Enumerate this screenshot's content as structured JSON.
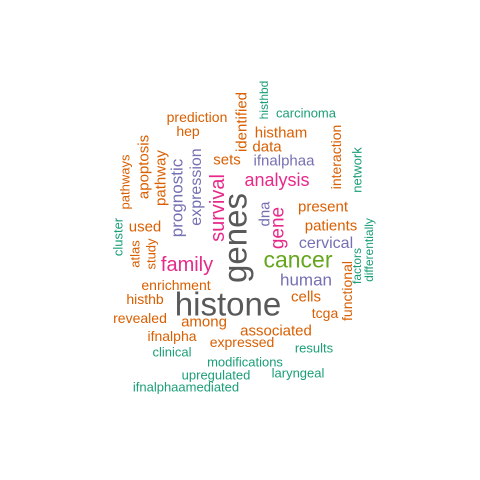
{
  "palette": {
    "green": "#1b9e77",
    "orange": "#d95f02",
    "purple": "#7570b3",
    "magenta": "#e7298a",
    "olive": "#66a61e",
    "gray": "#595959"
  },
  "words": {
    "histone": "histone",
    "genes": "genes",
    "cancer": "cancer",
    "survival": "survival",
    "family": "family",
    "analysis": "analysis",
    "gene": "gene",
    "human": "human",
    "prognostic": "prognostic",
    "expression": "expression",
    "cervical": "cervical",
    "patients": "patients",
    "present": "present",
    "cells": "cells",
    "dna": "dna",
    "enrichment": "enrichment",
    "among": "among",
    "associated": "associated",
    "ifnalphaa": "ifnalphaa",
    "sets": "sets",
    "apoptosis": "apoptosis",
    "pathway": "pathway",
    "histham": "histham",
    "data": "data",
    "identified": "identified",
    "prediction": "prediction",
    "hep": "hep",
    "used": "used",
    "study": "study",
    "atlas": "atlas",
    "pathways": "pathways",
    "cluster": "cluster",
    "histhb": "histhb",
    "revealed": "revealed",
    "ifnalpha": "ifnalpha",
    "expressed": "expressed",
    "clinical": "clinical",
    "modifications": "modifications",
    "upregulated": "upregulated",
    "laryngeal": "laryngeal",
    "ifnalphaamediated": "ifnalphaamediated",
    "results": "results",
    "tcga": "tcga",
    "functional": "functional",
    "factors": "factors",
    "differentially": "differentially",
    "network": "network",
    "interaction": "interaction",
    "carcinoma": "carcinoma",
    "histhbd": "histhbd"
  }
}
